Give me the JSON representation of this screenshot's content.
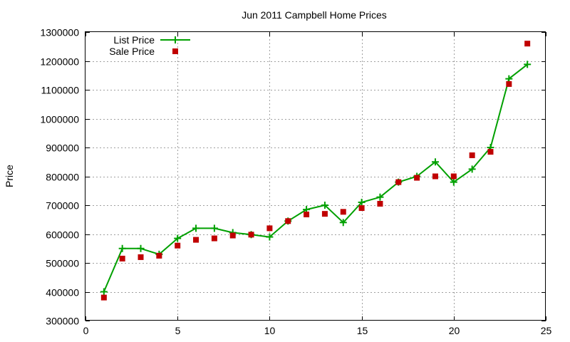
{
  "chart_data": {
    "type": "line",
    "title": "Jun 2011 Campbell Home Prices",
    "xlabel": "",
    "ylabel": "Price",
    "xlim": [
      0,
      25
    ],
    "ylim": [
      300000,
      1300000
    ],
    "xticks": [
      "0",
      "5",
      "10",
      "15",
      "20",
      "25"
    ],
    "yticks": [
      "300000",
      "400000",
      "500000",
      "600000",
      "700000",
      "800000",
      "900000",
      "1000000",
      "1100000",
      "1200000",
      "1300000"
    ],
    "grid": true,
    "legend_position": "top-left",
    "series": [
      {
        "name": "List Price",
        "style": "line-with-plus-markers",
        "color": "#00a000",
        "x": [
          1,
          2,
          3,
          4,
          5,
          6,
          7,
          8,
          9,
          10,
          11,
          12,
          13,
          14,
          15,
          16,
          17,
          18,
          19,
          20,
          21,
          22,
          23,
          24
        ],
        "y": [
          400000,
          550000,
          550000,
          530000,
          585000,
          620000,
          620000,
          605000,
          598000,
          590000,
          645000,
          685000,
          700000,
          640000,
          710000,
          728000,
          780000,
          800000,
          850000,
          780000,
          825000,
          900000,
          1138000,
          1188000
        ]
      },
      {
        "name": "Sale Price",
        "style": "square-markers",
        "color": "#c00000",
        "x": [
          1,
          2,
          3,
          4,
          5,
          6,
          7,
          8,
          9,
          10,
          11,
          12,
          13,
          14,
          15,
          16,
          17,
          18,
          19,
          20,
          21,
          22,
          23,
          24
        ],
        "y": [
          380000,
          515000,
          520000,
          525000,
          560000,
          580000,
          585000,
          595000,
          598000,
          620000,
          645000,
          668000,
          670000,
          677000,
          690000,
          705000,
          780000,
          795000,
          800000,
          800000,
          873000,
          885000,
          1120000,
          1260000
        ]
      }
    ]
  }
}
